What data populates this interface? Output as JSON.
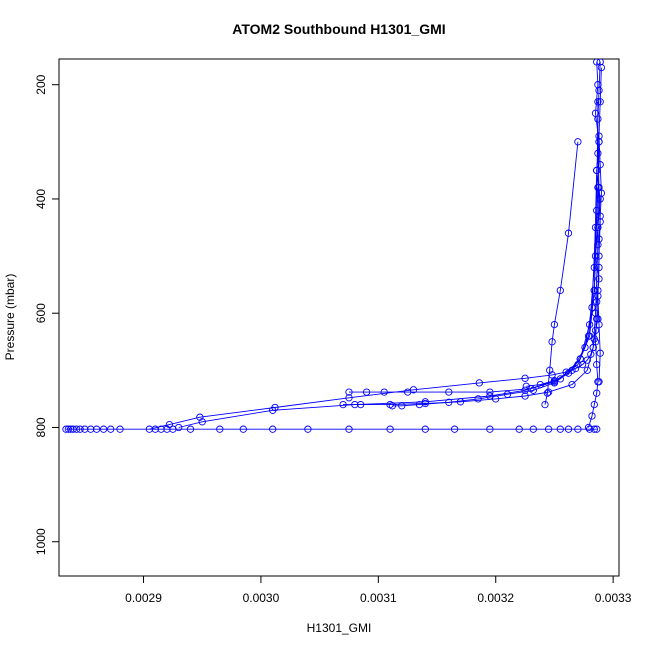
{
  "chart_data": {
    "type": "line",
    "title": "ATOM2 Southbound H1301_GMI",
    "xlabel": "H1301_GMI",
    "ylabel": "Pressure (mbar)",
    "xlim": [
      0.002828,
      0.003305
    ],
    "ylim": [
      1060,
      155
    ],
    "y_reversed": true,
    "grid": false,
    "series_color": "#0000ff",
    "marker": "open-circle",
    "x_ticks": [
      {
        "value": 0.0029,
        "label": "0.0029"
      },
      {
        "value": 0.003,
        "label": "0.0030"
      },
      {
        "value": 0.0031,
        "label": "0.0031"
      },
      {
        "value": 0.0032,
        "label": "0.0032"
      },
      {
        "value": 0.0033,
        "label": "0.0033"
      }
    ],
    "y_ticks": [
      {
        "value": 200,
        "label": "200"
      },
      {
        "value": 400,
        "label": "400"
      },
      {
        "value": 600,
        "label": "600"
      },
      {
        "value": 800,
        "label": "800"
      },
      {
        "value": 1000,
        "label": "1000"
      }
    ],
    "series": [
      {
        "x": [
          0.003286,
          0.003287,
          0.003285,
          0.003288,
          0.003286,
          0.003289,
          0.003287,
          0.003285,
          0.003288,
          0.003286,
          0.003287,
          0.003285,
          0.003284,
          0.003283,
          0.003281,
          0.003278,
          0.003274,
          0.003268,
          0.00326,
          0.003248,
          0.003225,
          0.003186,
          0.00313,
          0.003075,
          0.003012,
          0.002948,
          0.002922,
          0.002905
        ],
        "y": [
          160,
          200,
          250,
          300,
          350,
          400,
          450,
          500,
          540,
          580,
          610,
          630,
          645,
          660,
          672,
          682,
          690,
          697,
          703,
          708,
          714,
          722,
          734,
          748,
          765,
          782,
          795,
          803
        ]
      },
      {
        "x": [
          0.002834,
          0.002836,
          0.002838,
          0.00284,
          0.002843,
          0.002846,
          0.00285,
          0.002855,
          0.00286,
          0.002866,
          0.002872,
          0.00288,
          0.00291,
          0.002915,
          0.00292,
          0.002925,
          0.00294,
          0.002965,
          0.002985,
          0.00301,
          0.00304,
          0.003075,
          0.00311,
          0.00314,
          0.003165,
          0.003195,
          0.00322,
          0.003232,
          0.003245,
          0.003255,
          0.003262,
          0.00327,
          0.00328,
          0.003284,
          0.003286
        ],
        "y": [
          803,
          803,
          803,
          803,
          803,
          803,
          803,
          803,
          803,
          803,
          803,
          803,
          803,
          803,
          803,
          803,
          803,
          803,
          803,
          803,
          803,
          803,
          803,
          803,
          803,
          803,
          803,
          803,
          803,
          803,
          803,
          803,
          803,
          803,
          803
        ]
      },
      {
        "x": [
          0.003287,
          0.003286,
          0.003284,
          0.00328,
          0.00327,
          0.00325,
          0.003225,
          0.003195,
          0.00314,
          0.00308,
          0.00301,
          0.00295,
          0.00293
        ],
        "y": [
          230,
          420,
          560,
          640,
          690,
          720,
          735,
          745,
          755,
          760,
          770,
          790,
          800
        ]
      },
      {
        "x": [
          0.003288,
          0.003287,
          0.003285,
          0.003283,
          0.003278,
          0.003265,
          0.003245,
          0.003225,
          0.0032,
          0.00317,
          0.00314,
          0.00311,
          0.003085,
          0.00307
        ],
        "y": [
          300,
          480,
          600,
          660,
          700,
          725,
          738,
          745,
          750,
          755,
          758,
          760,
          760,
          760
        ]
      },
      {
        "x": [
          0.003286,
          0.003284,
          0.00328,
          0.003272,
          0.003255,
          0.00323,
          0.003195,
          0.00316,
          0.003125,
          0.003105,
          0.00309,
          0.003075
        ],
        "y": [
          350,
          520,
          620,
          680,
          715,
          732,
          738,
          738,
          738,
          738,
          738,
          738
        ]
      },
      {
        "x": [
          0.003285,
          0.003282,
          0.003276,
          0.003265,
          0.00325,
          0.003232,
          0.00321,
          0.003185,
          0.00316,
          0.003135,
          0.00312,
          0.003112
        ],
        "y": [
          450,
          590,
          660,
          700,
          722,
          735,
          742,
          750,
          756,
          760,
          762,
          762
        ]
      },
      {
        "x": [
          0.003287,
          0.003284,
          0.003279,
          0.003272,
          0.003262,
          0.00325,
          0.003238,
          0.003226
        ],
        "y": [
          380,
          560,
          640,
          680,
          705,
          718,
          725,
          728
        ]
      },
      {
        "x": [
          0.003289,
          0.003288,
          0.003287,
          0.003287,
          0.003288,
          0.003289,
          0.003288,
          0.003287,
          0.003286,
          0.003285,
          0.003286,
          0.003287,
          0.003286,
          0.003284,
          0.003282,
          0.003279
        ],
        "y": [
          160,
          210,
          260,
          320,
          380,
          440,
          500,
          560,
          610,
          650,
          690,
          720,
          740,
          760,
          780,
          800
        ]
      },
      {
        "x": [
          0.00327,
          0.003262,
          0.003255,
          0.00325,
          0.003248,
          0.003246,
          0.003244,
          0.003242
        ],
        "y": [
          300,
          460,
          560,
          620,
          650,
          700,
          740,
          760
        ]
      },
      {
        "x": [
          0.00329,
          0.003289,
          0.003288,
          0.003289,
          0.00329,
          0.003289,
          0.003288,
          0.003288,
          0.003287,
          0.003288,
          0.003289,
          0.003288
        ],
        "y": [
          170,
          230,
          290,
          340,
          390,
          430,
          470,
          520,
          570,
          620,
          670,
          720
        ]
      }
    ]
  }
}
